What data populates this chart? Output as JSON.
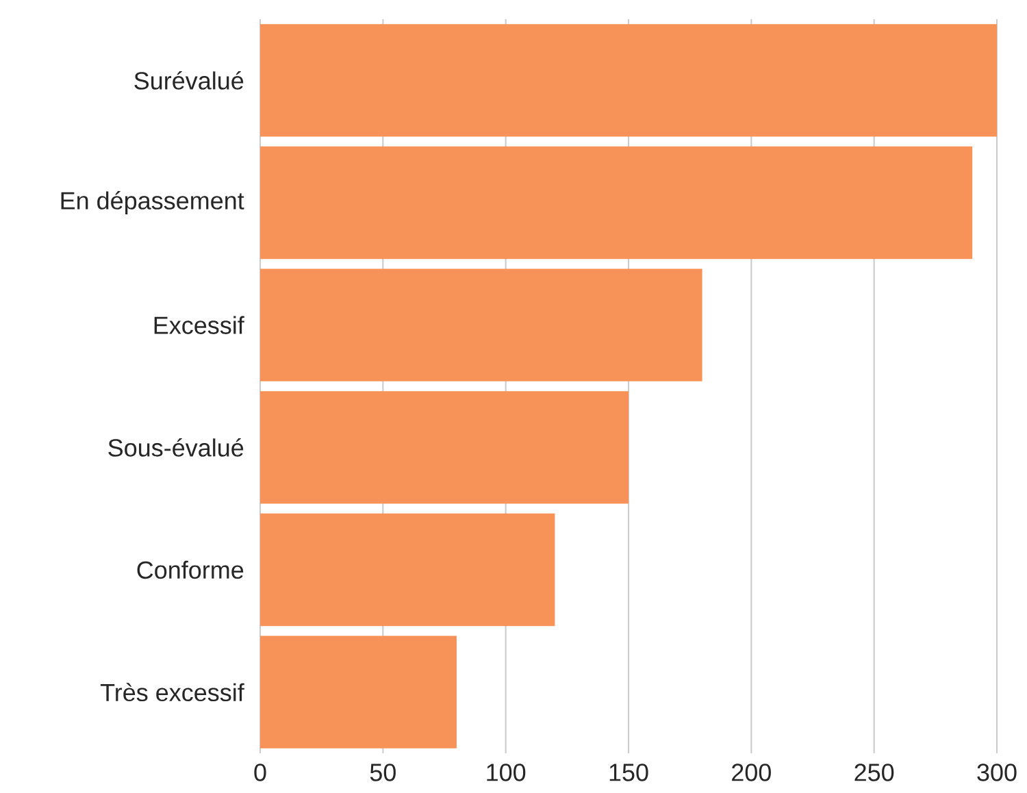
{
  "chart_data": {
    "type": "bar",
    "orientation": "horizontal",
    "categories": [
      "Surévalué",
      "En dépassement",
      "Excessif",
      "Sous-évalué",
      "Conforme",
      "Très excessif"
    ],
    "values": [
      300,
      290,
      180,
      150,
      120,
      80
    ],
    "color": "#f79358",
    "xlim": [
      0,
      300
    ],
    "xticks": [
      0,
      50,
      100,
      150,
      200,
      250,
      300
    ],
    "grid": "x"
  }
}
